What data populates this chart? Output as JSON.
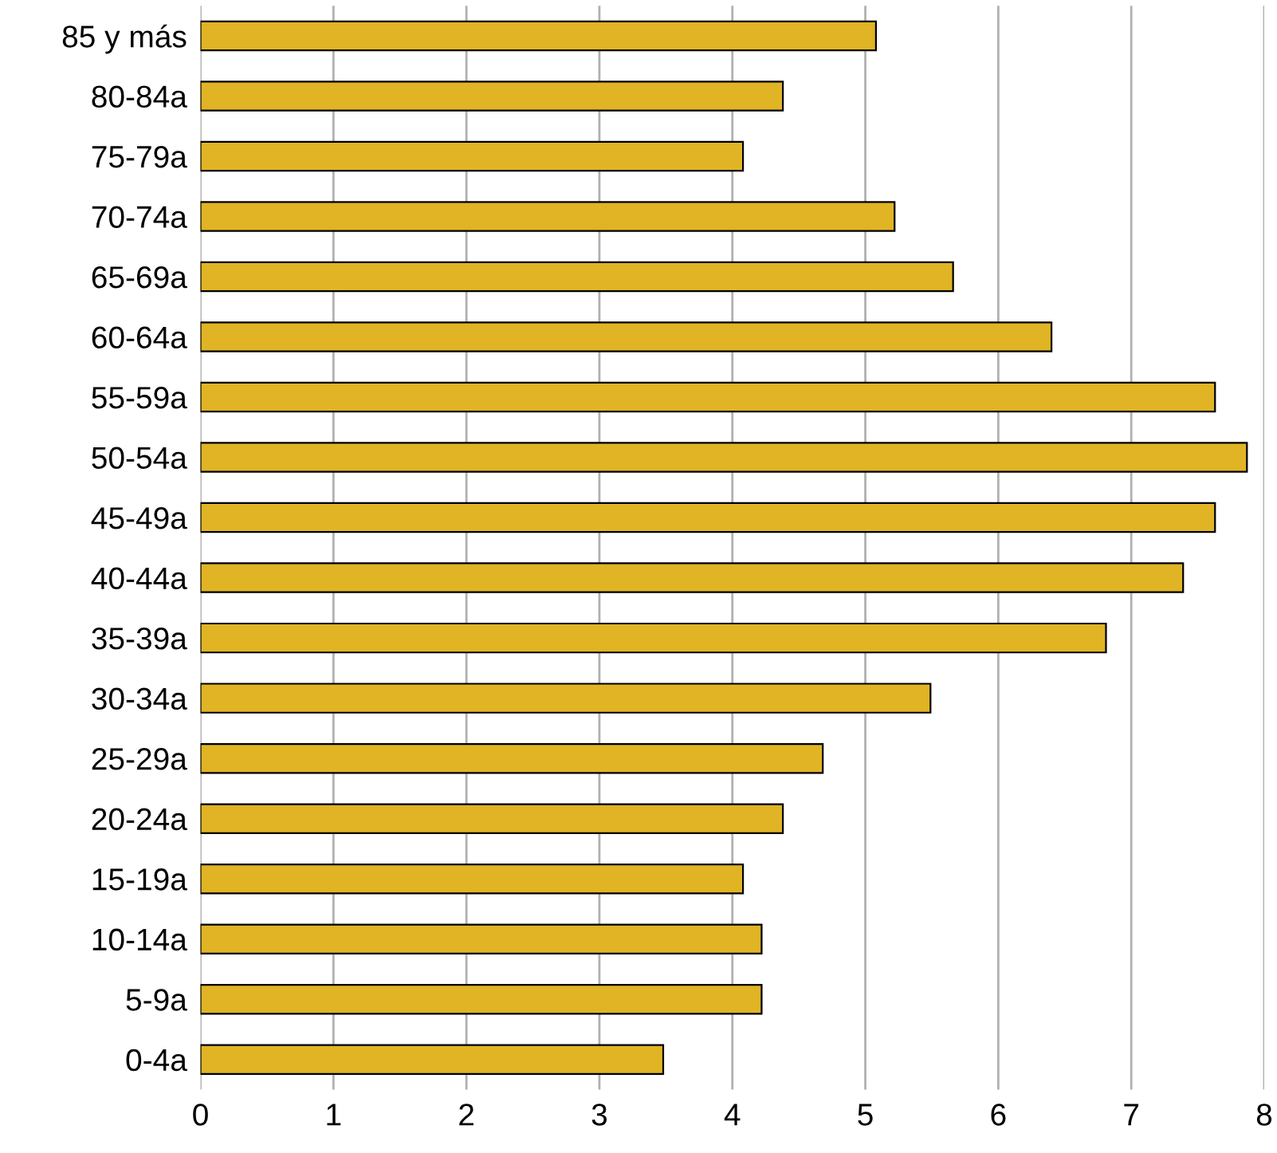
{
  "chart_data": {
    "type": "bar",
    "orientation": "horizontal",
    "categories": [
      "85 y más",
      "80-84a",
      "75-79a",
      "70-74a",
      "65-69a",
      "60-64a",
      "55-59a",
      "50-54a",
      "45-49a",
      "40-44a",
      "35-39a",
      "30-34a",
      "25-29a",
      "20-24a",
      "15-19a",
      "10-14a",
      "5-9a",
      "0-4a"
    ],
    "values": [
      5.08,
      4.38,
      4.08,
      5.22,
      5.66,
      6.4,
      7.63,
      7.87,
      7.63,
      7.39,
      6.81,
      5.49,
      4.68,
      4.38,
      4.08,
      4.22,
      4.22,
      3.48
    ],
    "color": "#e0b424",
    "xlim": [
      0,
      8
    ],
    "xticks": [
      0,
      1,
      2,
      3,
      4,
      5,
      6,
      7,
      8
    ],
    "grid": "x"
  }
}
